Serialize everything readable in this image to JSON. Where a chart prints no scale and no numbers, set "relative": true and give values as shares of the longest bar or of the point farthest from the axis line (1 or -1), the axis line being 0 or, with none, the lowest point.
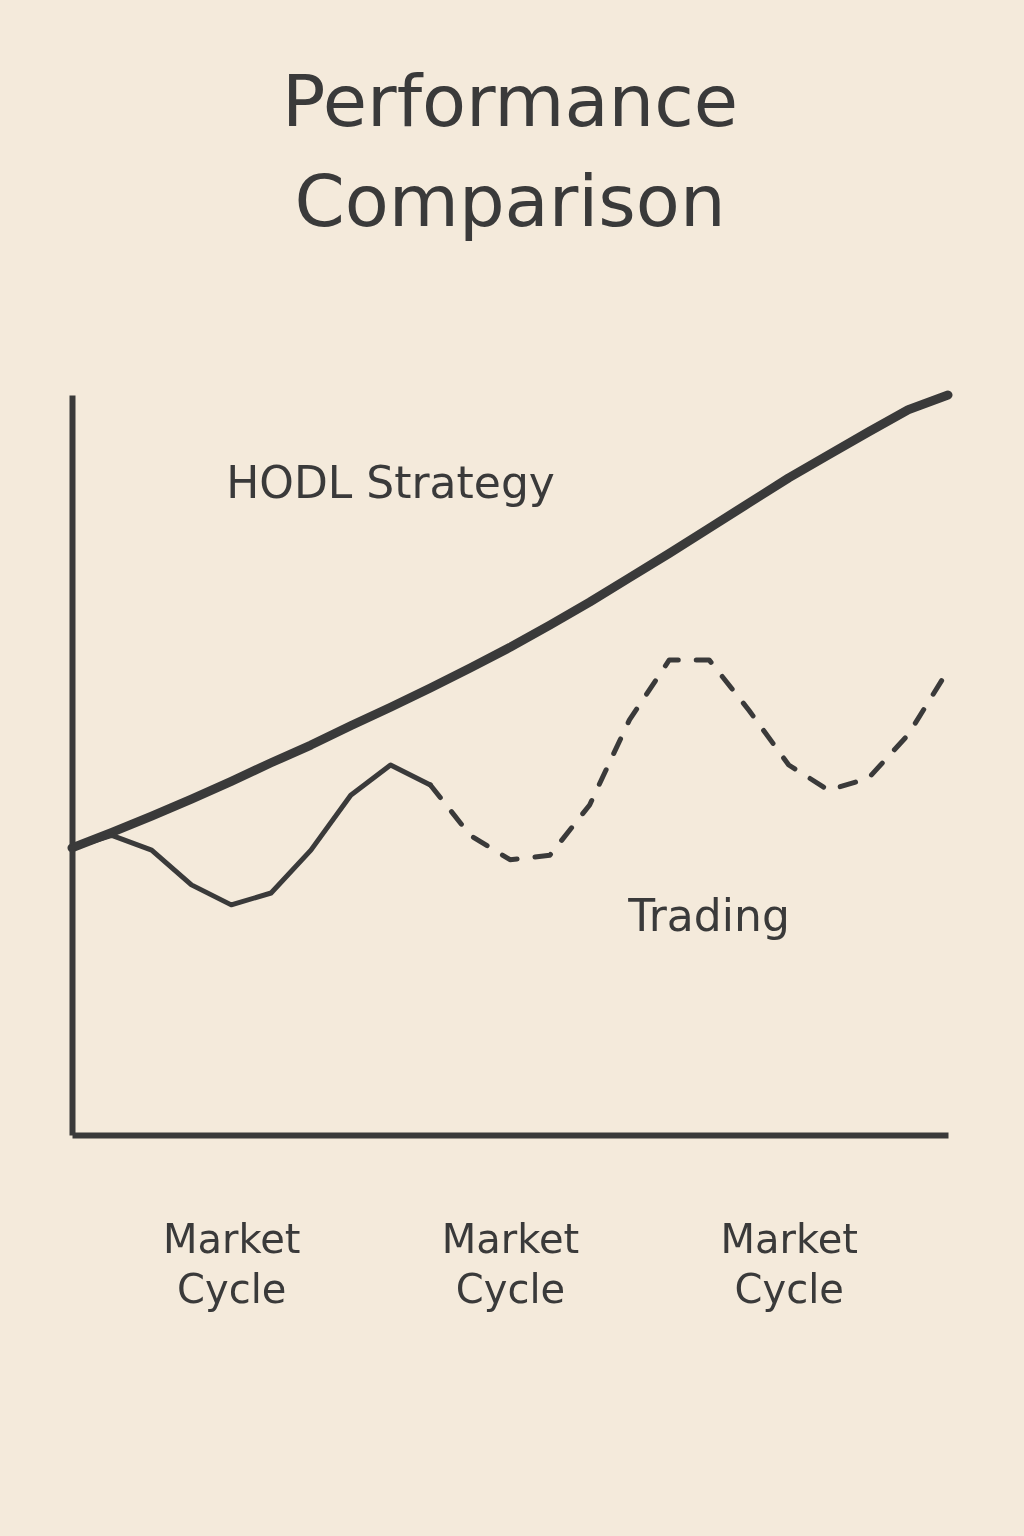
{
  "chart_data": {
    "type": "line",
    "title": "Performance Comparison",
    "relative": true,
    "legend": false,
    "grid": false,
    "categories": [
      null,
      null,
      null,
      null,
      "Market Cycle",
      null,
      null,
      null,
      null,
      null,
      null,
      "Market Cycle",
      null,
      null,
      null,
      null,
      null,
      null,
      "Market Cycle",
      null,
      null,
      null,
      null
    ],
    "series": [
      {
        "name": "HODL Strategy",
        "color": "#3a3a3a",
        "line_style": "solid",
        "values": [
          0.388,
          0.409,
          0.431,
          0.454,
          0.478,
          0.503,
          0.527,
          0.553,
          0.578,
          0.604,
          0.631,
          0.659,
          0.689,
          0.72,
          0.753,
          0.786,
          0.82,
          0.854,
          0.888,
          0.919,
          0.95,
          0.98,
          1.0
        ]
      },
      {
        "color": "#3a3a3a",
        "line_style": "solid",
        "values": [
          0.388,
          0.405,
          0.385,
          0.338,
          0.311,
          0.327,
          0.385,
          0.459,
          0.5,
          0.473,
          null,
          null,
          null,
          null,
          null,
          null,
          null,
          null,
          null,
          null,
          null,
          null,
          null
        ]
      },
      {
        "name": "Trading",
        "color": "#3a3a3a",
        "line_style": "dashed",
        "values": [
          null,
          null,
          null,
          null,
          null,
          null,
          null,
          null,
          null,
          0.473,
          0.405,
          0.372,
          0.378,
          0.446,
          0.561,
          0.642,
          0.642,
          0.574,
          0.5,
          0.466,
          0.482,
          0.541,
          0.628
        ]
      }
    ]
  }
}
